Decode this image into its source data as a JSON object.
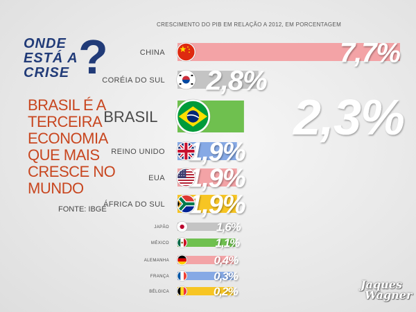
{
  "headline": {
    "line1": "ONDE",
    "line2": "ESTÁ A",
    "line3": "CRISE",
    "question_mark": "?"
  },
  "subheadline": {
    "lines": [
      "BRASIL É A",
      "TERCEIRA",
      "ECONOMIA",
      "QUE MAIS",
      "CRESCE NO",
      "MUNDO"
    ]
  },
  "source": "FONTE: IBGE",
  "logo": {
    "line1": "Jaques",
    "line2": "Wagner"
  },
  "colors": {
    "headline": "#213b78",
    "subheadline": "#c8461f",
    "pink": "#f3a3a6",
    "gray": "#c4c4c4",
    "green": "#6fc04f",
    "blue": "#86a9e5",
    "yellow": "#f7c523"
  },
  "chart_data": {
    "type": "bar",
    "orientation": "horizontal",
    "title": "CRESCIMENTO DO PIB EM RELAÇÃO A 2012, EM PORCENTAGEM",
    "xlabel": "",
    "ylabel": "",
    "xlim": [
      0,
      7.7
    ],
    "categories": [
      "CHINA",
      "CORÉIA DO SUL",
      "BRASIL",
      "REINO UNIDO",
      "EUA",
      "ÁFRICA DO SUL",
      "JAPÃO",
      "MÉXICO",
      "ALEMANHA",
      "FRANÇA",
      "BÉLGICA"
    ],
    "values": [
      7.7,
      2.8,
      2.3,
      1.9,
      1.9,
      1.9,
      1.6,
      1.1,
      0.4,
      0.3,
      0.2
    ],
    "value_labels": [
      "7,7%",
      "2,8%",
      "2,3%",
      "1,9%",
      "1,9%",
      "1,9%",
      "1,6%",
      "1,1%",
      "0,4%",
      "0,3%",
      "0,2%"
    ],
    "bar_colors": [
      "#f3a3a6",
      "#c4c4c4",
      "#6fc04f",
      "#86a9e5",
      "#f3a3a6",
      "#f7c523",
      "#c4c4c4",
      "#6fc04f",
      "#f3a3a6",
      "#86a9e5",
      "#f7c523"
    ],
    "flags": [
      "china-flag-icon",
      "south-korea-flag-icon",
      "brazil-flag-icon",
      "uk-flag-icon",
      "usa-flag-icon",
      "south-africa-flag-icon",
      "japan-flag-icon",
      "mexico-flag-icon",
      "germany-flag-icon",
      "france-flag-icon",
      "belgium-flag-icon"
    ]
  }
}
